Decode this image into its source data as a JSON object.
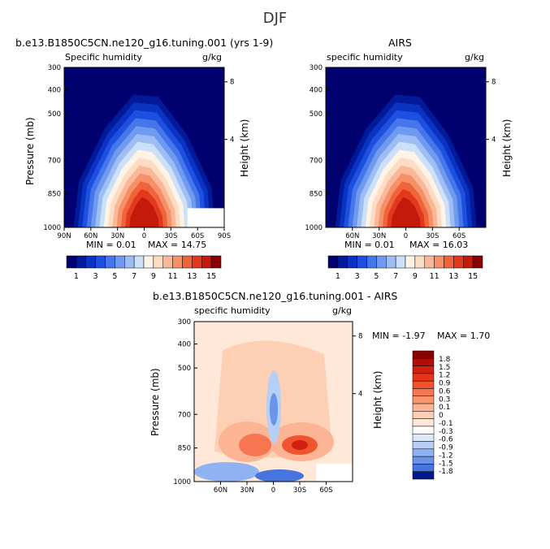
{
  "figure": {
    "title": "DJF"
  },
  "colors": {
    "pos": [
      "#ffe8d8",
      "#fdd0b6",
      "#fbb595",
      "#f89671",
      "#f57650",
      "#f0542f",
      "#e53518",
      "#d0200f",
      "#b30d08",
      "#8b0000"
    ],
    "neg": [
      "#ffffff",
      "#dce9fb",
      "#b7cff6",
      "#8fb3f0",
      "#6994e9",
      "#4775e0",
      "#2a56d4",
      "#183ec2",
      "#0c2aa6",
      "#001a8c"
    ]
  },
  "chart_data": [
    {
      "type": "heatmap",
      "title_left": "b.e13.B1850C5CN.ne120_g16.tuning.001 (yrs 1-9)",
      "variable": "Specific humidity",
      "units": "g/kg",
      "ylabel": "Pressure (mb)",
      "ylabel_right": "Height (km)",
      "yticks": [
        "300",
        "400",
        "500",
        "700",
        "850",
        "1000"
      ],
      "yticks_right": [
        "8",
        "4"
      ],
      "xticks": [
        "90N",
        "60N",
        "30N",
        "0",
        "30S",
        "60S",
        "90S"
      ],
      "min_text": "MIN =    0.01",
      "max_text": "MAX =  14.75",
      "field": "specific humidity, max ~15 g/kg near surface at equator"
    },
    {
      "type": "heatmap",
      "title": "AIRS",
      "variable": "specific humidity",
      "units": "g/kg",
      "ylabel_right": "Height (km)",
      "yticks": [
        "300",
        "400",
        "500",
        "700",
        "850",
        "1000"
      ],
      "yticks_right": [
        "8",
        "4"
      ],
      "xticks": [
        "60N",
        "30N",
        "0",
        "30S",
        "60S"
      ],
      "min_text": "MIN =    0.01",
      "max_text": "MAX =  16.03"
    },
    {
      "type": "heatmap",
      "title": "b.e13.B1850C5CN.ne120_g16.tuning.001 - AIRS",
      "variable": "specific humidity",
      "units": "g/kg",
      "ylabel": "Pressure (mb)",
      "ylabel_right": "Height (km)",
      "yticks": [
        "300",
        "400",
        "500",
        "700",
        "850",
        "1000"
      ],
      "yticks_right": [
        "8",
        "4"
      ],
      "xticks": [
        "60N",
        "30N",
        "0",
        "30S",
        "60S"
      ],
      "min_text": "MIN =   -1.97",
      "max_text": "MAX =    1.70",
      "colorbar_labels": [
        "1.8",
        "1.5",
        "1.2",
        "0.9",
        "0.6",
        "0.3",
        "0.1",
        "0",
        "-0.1",
        "-0.3",
        "-0.6",
        "-0.9",
        "-1.2",
        "-1.5",
        "-1.8"
      ]
    }
  ],
  "colorbar_top": {
    "labels": [
      "1",
      "3",
      "5",
      "7",
      "9",
      "11",
      "13",
      "15"
    ],
    "colors": [
      "#00006e",
      "#001a9a",
      "#0a33c2",
      "#1f4fe0",
      "#4576ea",
      "#6f9aef",
      "#9dbdf4",
      "#cde0fa",
      "#fff3e6",
      "#fddcc4",
      "#fbb898",
      "#f69066",
      "#f0643c",
      "#e2381c",
      "#c31a0b",
      "#8b0000"
    ]
  }
}
